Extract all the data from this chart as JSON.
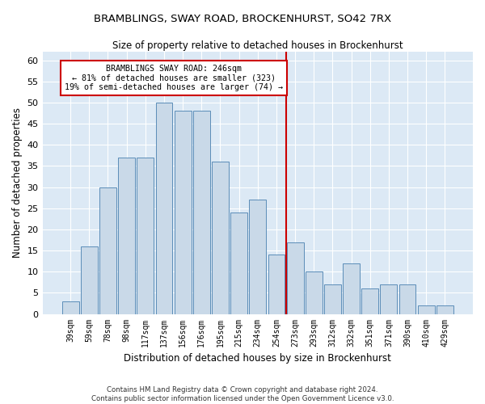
{
  "title": "BRAMBLINGS, SWAY ROAD, BROCKENHURST, SO42 7RX",
  "subtitle": "Size of property relative to detached houses in Brockenhurst",
  "xlabel": "Distribution of detached houses by size in Brockenhurst",
  "ylabel": "Number of detached properties",
  "footer1": "Contains HM Land Registry data © Crown copyright and database right 2024.",
  "footer2": "Contains public sector information licensed under the Open Government Licence v3.0.",
  "categories": [
    "39sqm",
    "59sqm",
    "78sqm",
    "98sqm",
    "117sqm",
    "137sqm",
    "156sqm",
    "176sqm",
    "195sqm",
    "215sqm",
    "234sqm",
    "254sqm",
    "273sqm",
    "293sqm",
    "312sqm",
    "332sqm",
    "351sqm",
    "371sqm",
    "390sqm",
    "410sqm",
    "429sqm"
  ],
  "bar_values": [
    3,
    16,
    30,
    37,
    37,
    50,
    48,
    48,
    36,
    24,
    27,
    14,
    17,
    10,
    7,
    12,
    6,
    7,
    7,
    2,
    2
  ],
  "annotation_title": "BRAMBLINGS SWAY ROAD: 246sqm",
  "annotation_line1": "← 81% of detached houses are smaller (323)",
  "annotation_line2": "19% of semi-detached houses are larger (74) →",
  "bar_color": "#c9d9e8",
  "bar_edgecolor": "#5b8db8",
  "vline_color": "#cc0000",
  "vline_x": 11.5,
  "annotation_box_edgecolor": "#cc0000",
  "background_color": "#dce9f5",
  "ylim": [
    0,
    62
  ],
  "yticks": [
    0,
    5,
    10,
    15,
    20,
    25,
    30,
    35,
    40,
    45,
    50,
    55,
    60
  ]
}
